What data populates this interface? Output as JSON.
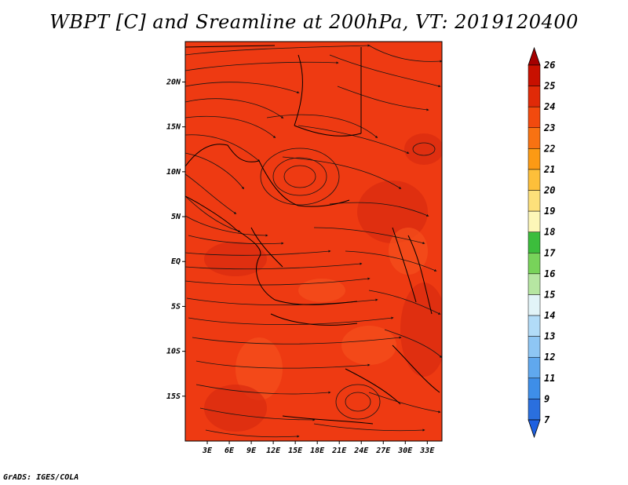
{
  "title": "WBPT [C] and Sreamline at 200hPa, VT: 2019120400",
  "credit": "GrADS: IGES/COLA",
  "map": {
    "lon_range": [
      0,
      35
    ],
    "lat_range": [
      -20,
      24.5
    ],
    "lat_ticks": [
      {
        "value": 20,
        "label": "20N"
      },
      {
        "value": 15,
        "label": "15N"
      },
      {
        "value": 10,
        "label": "10N"
      },
      {
        "value": 5,
        "label": "5N"
      },
      {
        "value": 0,
        "label": "EQ"
      },
      {
        "value": -5,
        "label": "5S"
      },
      {
        "value": -10,
        "label": "10S"
      },
      {
        "value": -15,
        "label": "15S"
      }
    ],
    "lon_ticks": [
      {
        "value": 3,
        "label": "3E"
      },
      {
        "value": 6,
        "label": "6E"
      },
      {
        "value": 9,
        "label": "9E"
      },
      {
        "value": 12,
        "label": "12E"
      },
      {
        "value": 15,
        "label": "15E"
      },
      {
        "value": 18,
        "label": "18E"
      },
      {
        "value": 21,
        "label": "21E"
      },
      {
        "value": 24,
        "label": "24E"
      },
      {
        "value": 27,
        "label": "27E"
      },
      {
        "value": 30,
        "label": "30E"
      },
      {
        "value": 33,
        "label": "33E"
      }
    ],
    "field_colors": {
      "main": "#ee3a12",
      "dark": "#d92b10",
      "light": "#f5501c"
    }
  },
  "colorbar": {
    "levels": [
      {
        "label": "26",
        "color": "#a50000"
      },
      {
        "label": "25",
        "color": "#c81000"
      },
      {
        "label": "24",
        "color": "#e02a08"
      },
      {
        "label": "23",
        "color": "#f24a0e"
      },
      {
        "label": "22",
        "color": "#f87212"
      },
      {
        "label": "21",
        "color": "#fc9a14"
      },
      {
        "label": "20",
        "color": "#fdbf3a"
      },
      {
        "label": "19",
        "color": "#fde07a"
      },
      {
        "label": "18",
        "color": "#fdf7b8"
      },
      {
        "label": "17",
        "color": "#3cbd3c"
      },
      {
        "label": "16",
        "color": "#78d35a"
      },
      {
        "label": "15",
        "color": "#b6e6a2"
      },
      {
        "label": "14",
        "color": "#e2f4f8"
      },
      {
        "label": "13",
        "color": "#b2dcf8"
      },
      {
        "label": "12",
        "color": "#8ec6f4"
      },
      {
        "label": "11",
        "color": "#60a8ee"
      },
      {
        "label": "9",
        "color": "#3e8ee8"
      },
      {
        "label": "7",
        "color": "#2a6fde"
      }
    ],
    "bottom_color": "#1e60e0"
  }
}
